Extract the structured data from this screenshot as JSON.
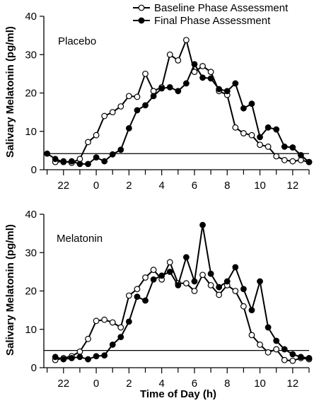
{
  "figure": {
    "legend": [
      "Baseline Phase Assessment",
      "Final Phase Assessment"
    ],
    "xlabel": "Time of Day (h)"
  },
  "chart_data": [
    {
      "type": "line",
      "panel_label": "Placebo",
      "ylabel": "Salivary Melatonin (pg/ml)",
      "xlabel": "Time of Day (h)",
      "x_ticks": [
        "22",
        "0",
        "2",
        "4",
        "6",
        "8",
        "10",
        "12"
      ],
      "y_ticks": [
        "0",
        "10",
        "20",
        "30",
        "40"
      ],
      "xlim": [
        -3.2,
        13.0
      ],
      "ylim": [
        0,
        40
      ],
      "threshold": 4.2,
      "grid": false,
      "legend_position": "top-right",
      "series": [
        {
          "name": "Baseline Phase Assessment",
          "marker": "open",
          "x": [
            -2.5,
            -2.0,
            -1.5,
            -1.0,
            -0.5,
            0.0,
            0.5,
            1.0,
            1.5,
            2.0,
            2.5,
            3.0,
            3.5,
            4.0,
            4.5,
            5.0,
            5.5,
            6.0,
            6.5,
            7.0,
            7.5,
            8.0,
            8.5,
            9.0,
            9.5,
            10.0,
            10.5,
            11.0,
            11.5,
            12.0,
            12.5,
            13.0
          ],
          "values": [
            2.0,
            2.2,
            1.8,
            2.8,
            7.2,
            9.0,
            14.0,
            15.0,
            16.5,
            19.2,
            19.0,
            25.0,
            20.5,
            21.5,
            30.0,
            28.5,
            33.8,
            25.5,
            27.0,
            25.5,
            20.5,
            19.5,
            11.0,
            9.5,
            9.0,
            6.5,
            6.0,
            3.5,
            2.5,
            2.2,
            2.5,
            2.0
          ]
        },
        {
          "name": "Final Phase Assessment",
          "marker": "filled",
          "x": [
            -3.0,
            -2.5,
            -2.0,
            -1.5,
            -1.0,
            -0.5,
            0.0,
            0.5,
            1.0,
            1.5,
            2.0,
            2.5,
            3.0,
            3.5,
            4.0,
            4.5,
            5.0,
            5.5,
            6.0,
            6.5,
            7.0,
            7.5,
            8.0,
            8.5,
            9.0,
            9.5,
            10.0,
            10.5,
            11.0,
            11.5,
            12.0,
            12.5,
            13.0
          ],
          "values": [
            4.2,
            2.8,
            2.0,
            2.2,
            1.5,
            1.5,
            3.2,
            2.2,
            4.0,
            5.2,
            10.8,
            15.5,
            16.8,
            19.2,
            21.2,
            21.5,
            20.5,
            22.5,
            27.5,
            24.0,
            23.8,
            21.0,
            20.5,
            22.5,
            16.0,
            17.2,
            8.5,
            11.0,
            10.5,
            6.0,
            5.8,
            3.8,
            2.0
          ]
        }
      ]
    },
    {
      "type": "line",
      "panel_label": "Melatonin",
      "ylabel": "Salivary Melatonin (pg/ml)",
      "xlabel": "Time of Day (h)",
      "x_ticks": [
        "22",
        "0",
        "2",
        "4",
        "6",
        "8",
        "10",
        "12"
      ],
      "y_ticks": [
        "0",
        "10",
        "20",
        "30",
        "40"
      ],
      "xlim": [
        -3.2,
        13.0
      ],
      "ylim": [
        0,
        40
      ],
      "threshold": 4.5,
      "grid": false,
      "legend_position": "none",
      "series": [
        {
          "name": "Baseline Phase Assessment",
          "marker": "open",
          "x": [
            -2.5,
            -2.0,
            -1.5,
            -1.0,
            -0.5,
            0.0,
            0.5,
            1.0,
            1.5,
            2.0,
            2.5,
            3.0,
            3.5,
            4.0,
            4.5,
            5.0,
            5.5,
            6.0,
            6.5,
            7.0,
            7.5,
            8.0,
            8.5,
            9.0,
            9.5,
            10.0,
            10.5,
            11.0,
            11.5,
            12.0,
            12.5,
            13.0
          ],
          "values": [
            2.0,
            2.5,
            3.0,
            4.2,
            7.5,
            12.2,
            12.5,
            11.8,
            10.5,
            18.8,
            20.5,
            23.5,
            25.5,
            23.0,
            27.5,
            22.0,
            22.0,
            20.0,
            24.2,
            21.5,
            19.0,
            21.5,
            20.0,
            16.0,
            8.5,
            6.0,
            4.0,
            4.8,
            2.0,
            1.8,
            2.5,
            2.2
          ]
        },
        {
          "name": "Final Phase Assessment",
          "marker": "filled",
          "x": [
            -2.5,
            -2.0,
            -1.5,
            -1.0,
            -0.5,
            0.0,
            0.5,
            1.0,
            1.5,
            2.0,
            2.5,
            3.0,
            3.5,
            4.0,
            4.5,
            5.0,
            5.5,
            6.0,
            6.5,
            7.0,
            7.5,
            8.0,
            8.5,
            9.0,
            9.5,
            10.0,
            10.5,
            11.0,
            11.5,
            12.0,
            12.5,
            13.0
          ],
          "values": [
            2.8,
            2.2,
            2.5,
            2.8,
            2.2,
            3.0,
            3.2,
            6.0,
            8.0,
            12.0,
            18.5,
            17.5,
            23.0,
            24.0,
            25.0,
            21.5,
            28.8,
            22.5,
            37.2,
            24.5,
            21.0,
            22.5,
            26.2,
            20.5,
            15.0,
            22.5,
            10.5,
            7.0,
            4.8,
            3.5,
            2.8,
            2.5
          ]
        }
      ]
    }
  ]
}
